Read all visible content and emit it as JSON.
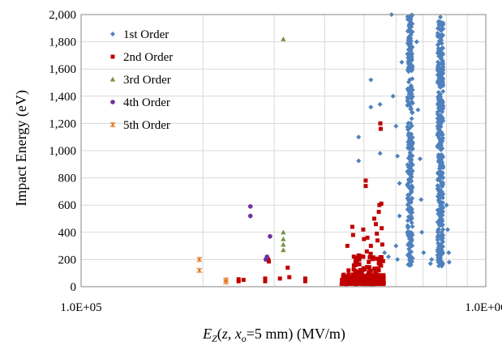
{
  "chart_data": {
    "type": "scatter",
    "title": "",
    "x_scale": "log",
    "xlim": [
      100000,
      1000000
    ],
    "ylim": [
      0,
      2000
    ],
    "x_ticks": [
      100000,
      1000000
    ],
    "x_tick_labels": [
      "1.0E+05",
      "1.0E+06"
    ],
    "y_ticks": [
      0,
      200,
      400,
      600,
      800,
      1000,
      1200,
      1400,
      1600,
      1800,
      2000
    ],
    "y_tick_labels": [
      "0",
      "200",
      "400",
      "600",
      "800",
      "1,000",
      "1,200",
      "1,400",
      "1,600",
      "1,800",
      "2,000"
    ],
    "xlabel": {
      "E": "E",
      "Z": "Z",
      "open": "(",
      "z": "z",
      "comma": ", ",
      "x": "x",
      "o": "o",
      "rest": "=5 mm) (MV/m)"
    },
    "ylabel": "Impact Energy (eV)",
    "grid": true,
    "legend_position": "top-left",
    "series": [
      {
        "name": "1st Order",
        "color": "#4f81bd",
        "marker": "diamond",
        "clusters": [
          {
            "x_min": 640000,
            "x_max": 660000,
            "y_min": 150,
            "y_max": 2000,
            "count": 280
          },
          {
            "x_min": 760000,
            "x_max": 785000,
            "y_min": 150,
            "y_max": 2000,
            "count": 360
          }
        ],
        "points": [
          {
            "x": 485000,
            "y": 1100
          },
          {
            "x": 485000,
            "y": 925
          },
          {
            "x": 520000,
            "y": 1520
          },
          {
            "x": 520000,
            "y": 1320
          },
          {
            "x": 548000,
            "y": 1340
          },
          {
            "x": 548000,
            "y": 1200
          },
          {
            "x": 548000,
            "y": 980
          },
          {
            "x": 585000,
            "y": 2000
          },
          {
            "x": 590000,
            "y": 1400
          },
          {
            "x": 600000,
            "y": 1180
          },
          {
            "x": 605000,
            "y": 960
          },
          {
            "x": 612000,
            "y": 760
          },
          {
            "x": 612000,
            "y": 520
          },
          {
            "x": 600000,
            "y": 300
          },
          {
            "x": 605000,
            "y": 200
          },
          {
            "x": 620000,
            "y": 1650
          },
          {
            "x": 675000,
            "y": 1800
          },
          {
            "x": 680000,
            "y": 1300
          },
          {
            "x": 688000,
            "y": 940
          },
          {
            "x": 692000,
            "y": 640
          },
          {
            "x": 695000,
            "y": 400
          },
          {
            "x": 702000,
            "y": 250
          },
          {
            "x": 730000,
            "y": 170
          },
          {
            "x": 735000,
            "y": 200
          },
          {
            "x": 800000,
            "y": 600
          },
          {
            "x": 805000,
            "y": 420
          },
          {
            "x": 810000,
            "y": 250
          },
          {
            "x": 812000,
            "y": 180
          },
          {
            "x": 550000,
            "y": 610
          },
          {
            "x": 562000,
            "y": 250
          },
          {
            "x": 575000,
            "y": 220
          }
        ]
      },
      {
        "name": "2nd Order",
        "color": "#c00000",
        "marker": "square",
        "clusters": [
          {
            "x_min": 440000,
            "x_max": 560000,
            "y_min": 20,
            "y_max": 90,
            "count": 260
          },
          {
            "x_min": 470000,
            "x_max": 560000,
            "y_min": 60,
            "y_max": 260,
            "count": 70
          }
        ],
        "points": [
          {
            "x": 245000,
            "y": 55
          },
          {
            "x": 245000,
            "y": 40
          },
          {
            "x": 252000,
            "y": 50
          },
          {
            "x": 285000,
            "y": 60
          },
          {
            "x": 285000,
            "y": 40
          },
          {
            "x": 290000,
            "y": 200
          },
          {
            "x": 291000,
            "y": 185
          },
          {
            "x": 310000,
            "y": 60
          },
          {
            "x": 324000,
            "y": 140
          },
          {
            "x": 327000,
            "y": 70
          },
          {
            "x": 358000,
            "y": 60
          },
          {
            "x": 358000,
            "y": 40
          },
          {
            "x": 445000,
            "y": 40
          },
          {
            "x": 455000,
            "y": 300
          },
          {
            "x": 458000,
            "y": 120
          },
          {
            "x": 468000,
            "y": 440
          },
          {
            "x": 470000,
            "y": 380
          },
          {
            "x": 476000,
            "y": 170
          },
          {
            "x": 480000,
            "y": 110
          },
          {
            "x": 485000,
            "y": 230
          },
          {
            "x": 487000,
            "y": 200
          },
          {
            "x": 498000,
            "y": 420
          },
          {
            "x": 500000,
            "y": 350
          },
          {
            "x": 505000,
            "y": 780
          },
          {
            "x": 505000,
            "y": 740
          },
          {
            "x": 510000,
            "y": 360
          },
          {
            "x": 520000,
            "y": 300
          },
          {
            "x": 530000,
            "y": 500
          },
          {
            "x": 535000,
            "y": 460
          },
          {
            "x": 538000,
            "y": 390
          },
          {
            "x": 540000,
            "y": 340
          },
          {
            "x": 544000,
            "y": 550
          },
          {
            "x": 546000,
            "y": 600
          },
          {
            "x": 549000,
            "y": 1200
          },
          {
            "x": 550000,
            "y": 1160
          },
          {
            "x": 552000,
            "y": 610
          },
          {
            "x": 553000,
            "y": 430
          },
          {
            "x": 555000,
            "y": 310
          }
        ]
      },
      {
        "name": "3rd Order",
        "color": "#76923c",
        "marker": "triangle",
        "points": [
          {
            "x": 316000,
            "y": 1820
          },
          {
            "x": 316000,
            "y": 400
          },
          {
            "x": 316000,
            "y": 350
          },
          {
            "x": 316000,
            "y": 310
          },
          {
            "x": 316000,
            "y": 270
          }
        ]
      },
      {
        "name": "4th Order",
        "color": "#7030a0",
        "marker": "circle",
        "points": [
          {
            "x": 262000,
            "y": 590
          },
          {
            "x": 262000,
            "y": 520
          },
          {
            "x": 293000,
            "y": 370
          },
          {
            "x": 288000,
            "y": 220
          },
          {
            "x": 286000,
            "y": 200
          }
        ]
      },
      {
        "name": "5th Order",
        "color": "#e46c0a",
        "marker": "star",
        "points": [
          {
            "x": 196000,
            "y": 200
          },
          {
            "x": 196000,
            "y": 120
          },
          {
            "x": 228000,
            "y": 50
          },
          {
            "x": 228000,
            "y": 35
          }
        ]
      }
    ]
  }
}
